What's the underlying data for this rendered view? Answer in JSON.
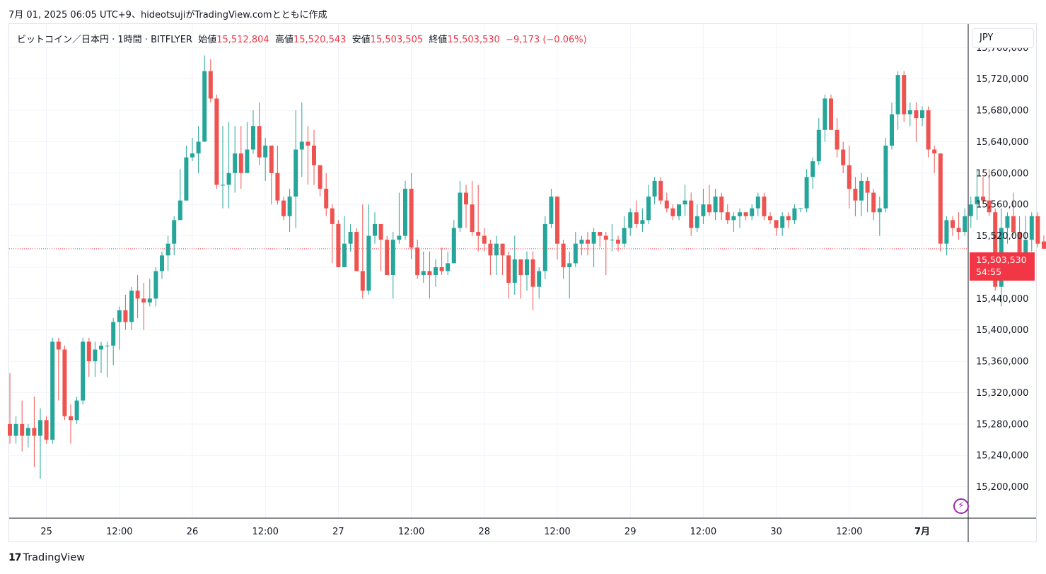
{
  "header": {
    "attribution": "7月 01, 2025 06:05 UTC+9、hideotsujiがTradingView.comとともに作成"
  },
  "legend": {
    "symbol": "ビットコイン／日本円 · 1時間 · BITFLYER",
    "open_label": "始値",
    "open_value": "15,512,804",
    "high_label": "高値",
    "high_value": "15,520,543",
    "low_label": "安値",
    "low_value": "15,503,505",
    "close_label": "終値",
    "close_value": "15,503,530",
    "change": "−9,173 (−0.06%)"
  },
  "currency": "JPY",
  "price_tag": {
    "price": "15,503,530",
    "countdown": "54:55"
  },
  "branding": {
    "logo": "17",
    "name": "TradingView"
  },
  "colors": {
    "up": "#26a69a",
    "down": "#ef5350",
    "grid": "#f0f3fa",
    "current_price_line": "#f23645"
  },
  "chart_data": {
    "type": "candlestick",
    "symbol": "BTC/JPY",
    "interval": "1h",
    "ylim": [
      15160000,
      15790000
    ],
    "y_ticks": [
      15200000,
      15240000,
      15280000,
      15320000,
      15360000,
      15400000,
      15440000,
      15480000,
      15520000,
      15560000,
      15600000,
      15640000,
      15680000,
      15720000,
      15760000
    ],
    "y_tick_labels": [
      "15,200,000",
      "15,240,000",
      "15,280,000",
      "15,320,000",
      "15,360,000",
      "15,400,000",
      "15,440,000",
      "",
      "15,520,000",
      "15,560,000",
      "15,600,000",
      "15,640,000",
      "15,680,000",
      "15,720,000",
      "15,760,000"
    ],
    "x_ticks": [
      {
        "index": 6,
        "label": "25",
        "bold": false
      },
      {
        "index": 18,
        "label": "12:00",
        "bold": false
      },
      {
        "index": 30,
        "label": "26",
        "bold": false
      },
      {
        "index": 42,
        "label": "12:00",
        "bold": false
      },
      {
        "index": 54,
        "label": "27",
        "bold": false
      },
      {
        "index": 66,
        "label": "12:00",
        "bold": false
      },
      {
        "index": 78,
        "label": "28",
        "bold": false
      },
      {
        "index": 90,
        "label": "12:00",
        "bold": false
      },
      {
        "index": 102,
        "label": "29",
        "bold": false
      },
      {
        "index": 114,
        "label": "12:00",
        "bold": false
      },
      {
        "index": 126,
        "label": "30",
        "bold": false
      },
      {
        "index": 138,
        "label": "12:00",
        "bold": false
      },
      {
        "index": 150,
        "label": "7月",
        "bold": true
      }
    ],
    "current_price": 15503530,
    "candles": [
      [
        15280000,
        15265000,
        15345000,
        15255000
      ],
      [
        15265000,
        15280000,
        15290000,
        15255000
      ],
      [
        15280000,
        15265000,
        15310000,
        15245000
      ],
      [
        15265000,
        15275000,
        15280000,
        15250000
      ],
      [
        15275000,
        15265000,
        15315000,
        15225000
      ],
      [
        15265000,
        15285000,
        15300000,
        15210000
      ],
      [
        15285000,
        15260000,
        15290000,
        15255000
      ],
      [
        15260000,
        15385000,
        15390000,
        15255000
      ],
      [
        15385000,
        15375000,
        15390000,
        15310000
      ],
      [
        15375000,
        15290000,
        15380000,
        15285000
      ],
      [
        15290000,
        15285000,
        15305000,
        15255000
      ],
      [
        15285000,
        15310000,
        15315000,
        15280000
      ],
      [
        15310000,
        15385000,
        15390000,
        15305000
      ],
      [
        15385000,
        15360000,
        15390000,
        15340000
      ],
      [
        15360000,
        15375000,
        15385000,
        15340000
      ],
      [
        15375000,
        15380000,
        15385000,
        15345000
      ],
      [
        15380000,
        15380000,
        15385000,
        15340000
      ],
      [
        15380000,
        15410000,
        15415000,
        15355000
      ],
      [
        15410000,
        15425000,
        15430000,
        15375000
      ],
      [
        15425000,
        15410000,
        15445000,
        15400000
      ],
      [
        15410000,
        15450000,
        15455000,
        15400000
      ],
      [
        15450000,
        15440000,
        15470000,
        15415000
      ],
      [
        15440000,
        15435000,
        15460000,
        15400000
      ],
      [
        15435000,
        15440000,
        15465000,
        15430000
      ],
      [
        15440000,
        15475000,
        15480000,
        15430000
      ],
      [
        15475000,
        15495000,
        15500000,
        15465000
      ],
      [
        15495000,
        15510000,
        15520000,
        15475000
      ],
      [
        15510000,
        15540000,
        15545000,
        15495000
      ],
      [
        15540000,
        15565000,
        15605000,
        15560000
      ],
      [
        15565000,
        15620000,
        15635000,
        15565000
      ],
      [
        15620000,
        15625000,
        15645000,
        15615000
      ],
      [
        15625000,
        15640000,
        15660000,
        15600000
      ],
      [
        15640000,
        15730000,
        15750000,
        15645000
      ],
      [
        15730000,
        15695000,
        15745000,
        15690000
      ],
      [
        15695000,
        15585000,
        15700000,
        15580000
      ],
      [
        15585000,
        15585000,
        15660000,
        15555000
      ],
      [
        15585000,
        15600000,
        15665000,
        15555000
      ],
      [
        15600000,
        15625000,
        15660000,
        15575000
      ],
      [
        15625000,
        15600000,
        15660000,
        15580000
      ],
      [
        15600000,
        15630000,
        15665000,
        15600000
      ],
      [
        15630000,
        15660000,
        15680000,
        15625000
      ],
      [
        15660000,
        15620000,
        15690000,
        15610000
      ],
      [
        15620000,
        15635000,
        15645000,
        15590000
      ],
      [
        15635000,
        15600000,
        15620000,
        15560000
      ],
      [
        15600000,
        15565000,
        15635000,
        15560000
      ],
      [
        15565000,
        15545000,
        15570000,
        15540000
      ],
      [
        15545000,
        15570000,
        15580000,
        15525000
      ],
      [
        15570000,
        15630000,
        15680000,
        15530000
      ],
      [
        15630000,
        15640000,
        15690000,
        15595000
      ],
      [
        15640000,
        15635000,
        15660000,
        15585000
      ],
      [
        15635000,
        15610000,
        15655000,
        15585000
      ],
      [
        15610000,
        15580000,
        15610000,
        15570000
      ],
      [
        15580000,
        15555000,
        15600000,
        15545000
      ],
      [
        15555000,
        15535000,
        15560000,
        15485000
      ],
      [
        15535000,
        15480000,
        15540000,
        15485000
      ],
      [
        15480000,
        15510000,
        15545000,
        15480000
      ],
      [
        15510000,
        15525000,
        15535000,
        15500000
      ],
      [
        15525000,
        15475000,
        15530000,
        15480000
      ],
      [
        15475000,
        15450000,
        15560000,
        15440000
      ],
      [
        15450000,
        15520000,
        15560000,
        15445000
      ],
      [
        15520000,
        15535000,
        15550000,
        15510000
      ],
      [
        15535000,
        15515000,
        15530000,
        15475000
      ],
      [
        15515000,
        15470000,
        15520000,
        15475000
      ],
      [
        15470000,
        15515000,
        15525000,
        15440000
      ],
      [
        15515000,
        15520000,
        15575000,
        15510000
      ],
      [
        15520000,
        15580000,
        15590000,
        15515000
      ],
      [
        15580000,
        15505000,
        15600000,
        15490000
      ],
      [
        15505000,
        15470000,
        15515000,
        15465000
      ],
      [
        15470000,
        15475000,
        15500000,
        15460000
      ],
      [
        15475000,
        15470000,
        15500000,
        15440000
      ],
      [
        15470000,
        15480000,
        15490000,
        15455000
      ],
      [
        15480000,
        15475000,
        15505000,
        15470000
      ],
      [
        15475000,
        15485000,
        15500000,
        15470000
      ],
      [
        15485000,
        15530000,
        15540000,
        15490000
      ],
      [
        15530000,
        15575000,
        15590000,
        15525000
      ],
      [
        15575000,
        15560000,
        15585000,
        15530000
      ],
      [
        15560000,
        15525000,
        15590000,
        15520000
      ],
      [
        15525000,
        15520000,
        15585000,
        15500000
      ],
      [
        15520000,
        15510000,
        15530000,
        15500000
      ],
      [
        15510000,
        15495000,
        15515000,
        15470000
      ],
      [
        15495000,
        15510000,
        15520000,
        15470000
      ],
      [
        15510000,
        15495000,
        15510000,
        15470000
      ],
      [
        15495000,
        15460000,
        15500000,
        15440000
      ],
      [
        15460000,
        15490000,
        15520000,
        15445000
      ],
      [
        15490000,
        15470000,
        15480000,
        15440000
      ],
      [
        15470000,
        15490000,
        15500000,
        15450000
      ],
      [
        15490000,
        15455000,
        15500000,
        15425000
      ],
      [
        15455000,
        15475000,
        15480000,
        15440000
      ],
      [
        15475000,
        15535000,
        15545000,
        15465000
      ],
      [
        15535000,
        15570000,
        15580000,
        15530000
      ],
      [
        15570000,
        15510000,
        15570000,
        15490000
      ],
      [
        15510000,
        15480000,
        15515000,
        15465000
      ],
      [
        15480000,
        15485000,
        15500000,
        15440000
      ],
      [
        15485000,
        15510000,
        15525000,
        15480000
      ],
      [
        15510000,
        15515000,
        15520000,
        15495000
      ],
      [
        15515000,
        15510000,
        15525000,
        15495000
      ],
      [
        15510000,
        15525000,
        15530000,
        15480000
      ],
      [
        15525000,
        15520000,
        15525000,
        15505000
      ],
      [
        15520000,
        15515000,
        15525000,
        15470000
      ],
      [
        15515000,
        15515000,
        15535000,
        15500000
      ],
      [
        15515000,
        15510000,
        15520000,
        15500000
      ],
      [
        15510000,
        15530000,
        15545000,
        15505000
      ],
      [
        15530000,
        15550000,
        15555000,
        15520000
      ],
      [
        15550000,
        15535000,
        15565000,
        15530000
      ],
      [
        15535000,
        15540000,
        15555000,
        15525000
      ],
      [
        15540000,
        15570000,
        15585000,
        15535000
      ],
      [
        15570000,
        15590000,
        15595000,
        15560000
      ],
      [
        15590000,
        15565000,
        15595000,
        15560000
      ],
      [
        15565000,
        15555000,
        15575000,
        15550000
      ],
      [
        15555000,
        15545000,
        15560000,
        15540000
      ],
      [
        15545000,
        15560000,
        15560000,
        15540000
      ],
      [
        15560000,
        15565000,
        15585000,
        15545000
      ],
      [
        15565000,
        15530000,
        15575000,
        15520000
      ],
      [
        15530000,
        15545000,
        15560000,
        15525000
      ],
      [
        15545000,
        15560000,
        15580000,
        15535000
      ],
      [
        15560000,
        15550000,
        15585000,
        15545000
      ],
      [
        15550000,
        15570000,
        15580000,
        15540000
      ],
      [
        15570000,
        15550000,
        15575000,
        15540000
      ],
      [
        15550000,
        15540000,
        15560000,
        15535000
      ],
      [
        15540000,
        15545000,
        15550000,
        15525000
      ],
      [
        15545000,
        15550000,
        15555000,
        15530000
      ],
      [
        15550000,
        15545000,
        15550000,
        15540000
      ],
      [
        15545000,
        15555000,
        15560000,
        15540000
      ],
      [
        15555000,
        15570000,
        15575000,
        15545000
      ],
      [
        15570000,
        15545000,
        15575000,
        15540000
      ],
      [
        15545000,
        15540000,
        15550000,
        15535000
      ],
      [
        15540000,
        15530000,
        15540000,
        15520000
      ],
      [
        15530000,
        15545000,
        15550000,
        15520000
      ],
      [
        15545000,
        15540000,
        15550000,
        15530000
      ],
      [
        15540000,
        15555000,
        15560000,
        15535000
      ],
      [
        15555000,
        15555000,
        15555000,
        15550000
      ],
      [
        15555000,
        15595000,
        15605000,
        15550000
      ],
      [
        15595000,
        15615000,
        15620000,
        15580000
      ],
      [
        15615000,
        15655000,
        15670000,
        15610000
      ],
      [
        15655000,
        15695000,
        15700000,
        15640000
      ],
      [
        15695000,
        15655000,
        15700000,
        15655000
      ],
      [
        15655000,
        15630000,
        15670000,
        15620000
      ],
      [
        15630000,
        15610000,
        15640000,
        15600000
      ],
      [
        15610000,
        15580000,
        15635000,
        15555000
      ],
      [
        15580000,
        15565000,
        15595000,
        15545000
      ],
      [
        15565000,
        15590000,
        15600000,
        15545000
      ],
      [
        15590000,
        15575000,
        15595000,
        15550000
      ],
      [
        15575000,
        15550000,
        15580000,
        15540000
      ],
      [
        15550000,
        15555000,
        15570000,
        15520000
      ],
      [
        15555000,
        15635000,
        15645000,
        15550000
      ],
      [
        15635000,
        15675000,
        15690000,
        15630000
      ],
      [
        15675000,
        15725000,
        15730000,
        15655000
      ],
      [
        15725000,
        15675000,
        15730000,
        15665000
      ],
      [
        15675000,
        15680000,
        15690000,
        15660000
      ],
      [
        15680000,
        15670000,
        15690000,
        15640000
      ],
      [
        15670000,
        15680000,
        15685000,
        15660000
      ],
      [
        15680000,
        15630000,
        15685000,
        15620000
      ],
      [
        15630000,
        15625000,
        15635000,
        15600000
      ],
      [
        15625000,
        15510000,
        15625000,
        15500000
      ],
      [
        15510000,
        15540000,
        15545000,
        15495000
      ],
      [
        15540000,
        15530000,
        15545000,
        15520000
      ],
      [
        15530000,
        15525000,
        15550000,
        15515000
      ],
      [
        15525000,
        15545000,
        15555000,
        15520000
      ],
      [
        15545000,
        15560000,
        15570000,
        15530000
      ],
      [
        15560000,
        15570000,
        15605000,
        15540000
      ],
      [
        15570000,
        15565000,
        15595000,
        15560000
      ],
      [
        15565000,
        15550000,
        15605000,
        15545000
      ],
      [
        15550000,
        15455000,
        15555000,
        15450000
      ],
      [
        15455000,
        15530000,
        15555000,
        15430000
      ],
      [
        15530000,
        15545000,
        15550000,
        15510000
      ],
      [
        15545000,
        15525000,
        15575000,
        15520000
      ],
      [
        15525000,
        15485000,
        15545000,
        15475000
      ],
      [
        15485000,
        15515000,
        15545000,
        15490000
      ],
      [
        15515000,
        15545000,
        15550000,
        15500000
      ],
      [
        15545000,
        15510000,
        15550000,
        15505000
      ],
      [
        15512804,
        15503530,
        15520543,
        15503505
      ]
    ]
  }
}
